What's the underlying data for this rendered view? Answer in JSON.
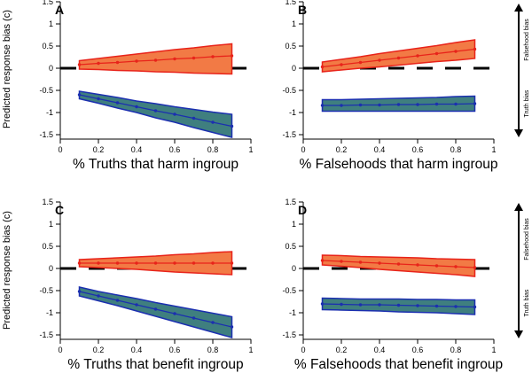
{
  "figure": {
    "ylabel": "Predicted response bias (c)",
    "side_labels": {
      "top": "Falsehood bias",
      "bottom": "Truth bias"
    }
  },
  "chart_data": [
    {
      "type": "line",
      "panel": "A",
      "xlabel": "% Truths that harm ingroup",
      "xlim": [
        0,
        1
      ],
      "ylim": [
        -1.6,
        1.5
      ],
      "xticks": [
        "0",
        "0.2",
        "0.4",
        "0.6",
        "0.8",
        "1"
      ],
      "yticks": [
        "1.5",
        "1",
        "0.5",
        "0",
        "-0.5",
        "-1",
        "-1.5"
      ],
      "x": [
        0.1,
        0.2,
        0.3,
        0.4,
        0.5,
        0.6,
        0.7,
        0.8,
        0.9
      ],
      "series": [
        {
          "color": "#e86a2f",
          "values": [
            0.08,
            0.11,
            0.13,
            0.16,
            0.18,
            0.21,
            0.23,
            0.26,
            0.28
          ],
          "lower": [
            -0.02,
            -0.03,
            -0.05,
            -0.06,
            -0.08,
            -0.09,
            -0.11,
            -0.12,
            -0.13
          ],
          "upper": [
            0.17,
            0.22,
            0.27,
            0.32,
            0.37,
            0.42,
            0.46,
            0.51,
            0.55
          ]
        },
        {
          "color": "#3f7f7f",
          "values": [
            -0.6,
            -0.69,
            -0.78,
            -0.87,
            -0.96,
            -1.04,
            -1.13,
            -1.22,
            -1.31
          ],
          "lower": [
            -0.69,
            -0.79,
            -0.9,
            -1.0,
            -1.12,
            -1.22,
            -1.34,
            -1.45,
            -1.56
          ],
          "upper": [
            -0.52,
            -0.59,
            -0.66,
            -0.74,
            -0.8,
            -0.87,
            -0.93,
            -0.99,
            -1.04
          ]
        }
      ],
      "reference_line_y": 0
    },
    {
      "type": "line",
      "panel": "B",
      "xlabel": "% Falsehoods that harm ingroup",
      "xlim": [
        0,
        1
      ],
      "ylim": [
        -1.6,
        1.5
      ],
      "xticks": [
        "0",
        "0.2",
        "0.4",
        "0.6",
        "0.8",
        "1"
      ],
      "yticks": [
        "1.5",
        "1",
        "0.5",
        "0",
        "-0.5",
        "-1",
        "-1.5"
      ],
      "x": [
        0.1,
        0.2,
        0.3,
        0.4,
        0.5,
        0.6,
        0.7,
        0.8,
        0.9
      ],
      "series": [
        {
          "color": "#e86a2f",
          "values": [
            0.03,
            0.08,
            0.13,
            0.18,
            0.23,
            0.28,
            0.33,
            0.38,
            0.43
          ],
          "lower": [
            -0.08,
            -0.04,
            0.0,
            0.03,
            0.07,
            0.11,
            0.15,
            0.18,
            0.22
          ],
          "upper": [
            0.14,
            0.2,
            0.26,
            0.33,
            0.39,
            0.45,
            0.51,
            0.58,
            0.64
          ]
        },
        {
          "color": "#3f7f7f",
          "values": [
            -0.84,
            -0.84,
            -0.83,
            -0.83,
            -0.82,
            -0.82,
            -0.81,
            -0.81,
            -0.8
          ],
          "lower": [
            -0.97,
            -0.97,
            -0.97,
            -0.97,
            -0.97,
            -0.97,
            -0.97,
            -0.97,
            -0.97
          ],
          "upper": [
            -0.71,
            -0.71,
            -0.7,
            -0.69,
            -0.68,
            -0.67,
            -0.66,
            -0.64,
            -0.63
          ]
        }
      ],
      "reference_line_y": 0
    },
    {
      "type": "line",
      "panel": "C",
      "xlabel": "% Truths that benefit ingroup",
      "xlim": [
        0,
        1
      ],
      "ylim": [
        -1.6,
        1.5
      ],
      "xticks": [
        "0",
        "0.2",
        "0.4",
        "0.6",
        "0.8",
        "1"
      ],
      "yticks": [
        "1.5",
        "1",
        "0.5",
        "0",
        "-0.5",
        "-1",
        "-1.5"
      ],
      "x": [
        0.1,
        0.2,
        0.3,
        0.4,
        0.5,
        0.6,
        0.7,
        0.8,
        0.9
      ],
      "series": [
        {
          "color": "#e86a2f",
          "values": [
            0.12,
            0.12,
            0.12,
            0.12,
            0.12,
            0.12,
            0.12,
            0.12,
            0.12
          ],
          "lower": [
            0.04,
            0.02,
            0.0,
            -0.02,
            -0.05,
            -0.08,
            -0.1,
            -0.12,
            -0.14
          ],
          "upper": [
            0.2,
            0.22,
            0.24,
            0.26,
            0.28,
            0.31,
            0.33,
            0.36,
            0.38
          ]
        },
        {
          "color": "#3f7f7f",
          "values": [
            -0.52,
            -0.62,
            -0.72,
            -0.82,
            -0.92,
            -1.02,
            -1.12,
            -1.22,
            -1.32
          ],
          "lower": [
            -0.62,
            -0.73,
            -0.84,
            -0.96,
            -1.08,
            -1.2,
            -1.32,
            -1.44,
            -1.56
          ],
          "upper": [
            -0.42,
            -0.52,
            -0.6,
            -0.68,
            -0.77,
            -0.85,
            -0.93,
            -1.01,
            -1.09
          ]
        }
      ],
      "reference_line_y": 0
    },
    {
      "type": "line",
      "panel": "D",
      "xlabel": "% Falsehoods that benefit ingroup",
      "xlim": [
        0,
        1
      ],
      "ylim": [
        -1.6,
        1.5
      ],
      "xticks": [
        "0",
        "0.2",
        "0.4",
        "0.6",
        "0.8",
        "1"
      ],
      "yticks": [
        "1.5",
        "1",
        "0.5",
        "0",
        "-0.5",
        "-1",
        "-1.5"
      ],
      "x": [
        0.1,
        0.2,
        0.3,
        0.4,
        0.5,
        0.6,
        0.7,
        0.8,
        0.9
      ],
      "series": [
        {
          "color": "#e86a2f",
          "values": [
            0.18,
            0.16,
            0.14,
            0.12,
            0.1,
            0.08,
            0.06,
            0.04,
            0.02
          ],
          "lower": [
            0.08,
            0.05,
            0.02,
            -0.02,
            -0.05,
            -0.08,
            -0.11,
            -0.14,
            -0.18
          ],
          "upper": [
            0.3,
            0.29,
            0.27,
            0.26,
            0.25,
            0.24,
            0.22,
            0.21,
            0.2
          ]
        },
        {
          "color": "#3f7f7f",
          "values": [
            -0.8,
            -0.81,
            -0.82,
            -0.82,
            -0.83,
            -0.84,
            -0.85,
            -0.86,
            -0.87
          ],
          "lower": [
            -0.93,
            -0.94,
            -0.95,
            -0.96,
            -0.98,
            -0.99,
            -1.0,
            -1.02,
            -1.04
          ],
          "upper": [
            -0.67,
            -0.68,
            -0.69,
            -0.69,
            -0.69,
            -0.7,
            -0.7,
            -0.71,
            -0.71
          ]
        }
      ],
      "reference_line_y": 0
    }
  ]
}
